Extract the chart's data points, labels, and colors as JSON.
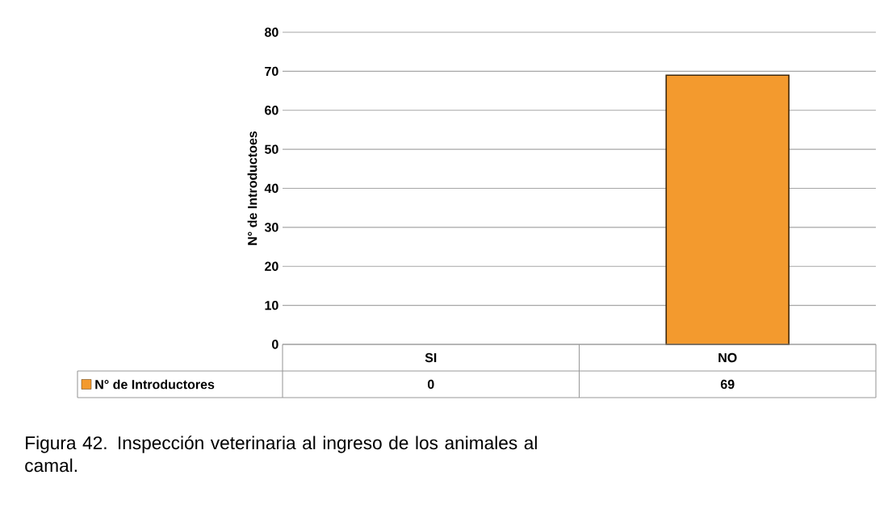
{
  "chart_data": {
    "type": "bar",
    "categories": [
      "SI",
      "NO"
    ],
    "series": [
      {
        "name": "N° de Introductores",
        "color": "#f39a2e",
        "values": [
          0,
          69
        ]
      }
    ],
    "ylabel": "N° de Introductoes",
    "ylim": [
      0,
      80
    ],
    "yticks": [
      0,
      10,
      20,
      30,
      40,
      50,
      60,
      70,
      80
    ],
    "grid": "y",
    "legend": "bottom",
    "data_labels": true,
    "annotations": [
      "Figura 42. Inspección veterinaria al ingreso de los animales al camal."
    ]
  }
}
